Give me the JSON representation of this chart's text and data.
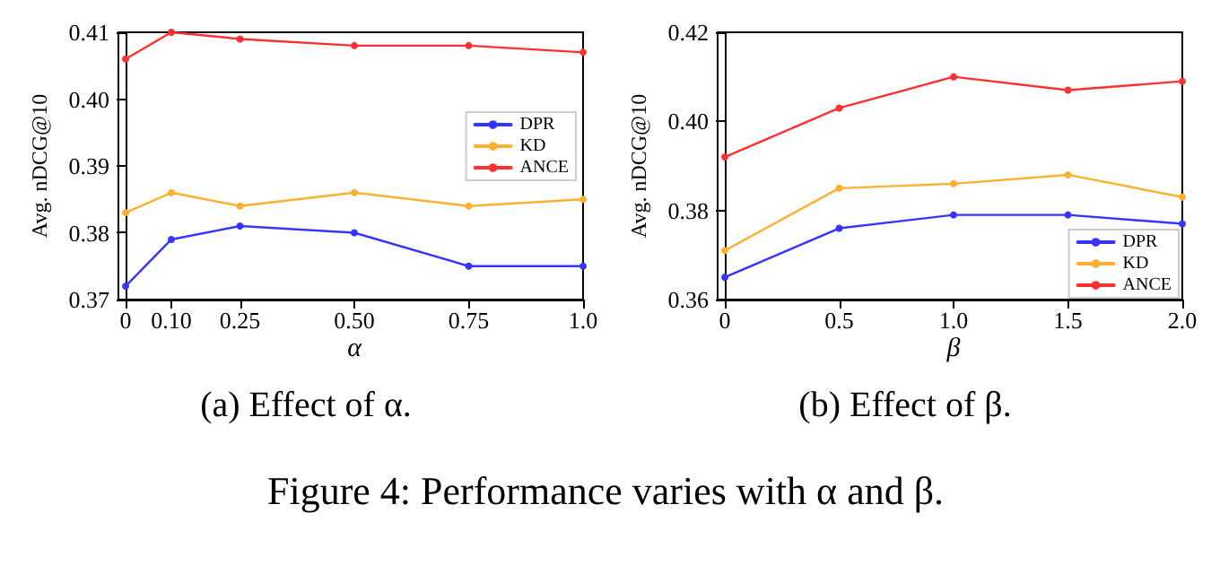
{
  "chart_data": [
    {
      "type": "line",
      "title": "(a) Effect of α.",
      "xlabel": "α",
      "ylabel": "Avg. nDCG@10",
      "x": [
        0,
        0.1,
        0.25,
        0.5,
        0.75,
        1.0
      ],
      "series": [
        {
          "name": "DPR",
          "color": "#3535ff",
          "values": [
            0.372,
            0.379,
            0.381,
            0.38,
            0.375,
            0.375
          ]
        },
        {
          "name": "KD",
          "color": "#ffb030",
          "values": [
            0.383,
            0.386,
            0.384,
            0.386,
            0.384,
            0.385
          ]
        },
        {
          "name": "ANCE",
          "color": "#ff3030",
          "values": [
            0.406,
            0.41,
            0.409,
            0.408,
            0.408,
            0.407
          ]
        }
      ],
      "xlim": [
        0,
        1.0
      ],
      "xticks": [
        0,
        {
          "value": 0.1,
          "label": "0.10"
        },
        0.25,
        {
          "value": 0.5,
          "label": "0.50"
        },
        0.75,
        {
          "value": 1.0,
          "label": "1.0"
        }
      ],
      "ylim": [
        0.37,
        0.41
      ],
      "yticks": [
        0.37,
        0.38,
        0.39,
        {
          "value": 0.4,
          "label": "0.40"
        },
        0.41
      ],
      "legend": "right",
      "marker": "circle",
      "line_style": "solid",
      "grid": false,
      "annotations": [
        "Figure 4: Performance varies with α and β."
      ]
    },
    {
      "type": "line",
      "title": "(b) Effect of β.",
      "xlabel": "β",
      "ylabel": "Avg. nDCG@10",
      "x": [
        0,
        0.5,
        1.0,
        1.5,
        2.0
      ],
      "series": [
        {
          "name": "DPR",
          "color": "#3535ff",
          "values": [
            0.365,
            0.376,
            0.379,
            0.379,
            0.377
          ]
        },
        {
          "name": "KD",
          "color": "#ffb030",
          "values": [
            0.371,
            0.385,
            0.386,
            0.388,
            0.383
          ]
        },
        {
          "name": "ANCE",
          "color": "#ff3030",
          "values": [
            0.392,
            0.403,
            0.41,
            0.407,
            0.409
          ]
        }
      ],
      "xlim": [
        0,
        2.0
      ],
      "xticks": [
        0,
        0.5,
        {
          "value": 1.0,
          "label": "1.0"
        },
        1.5,
        {
          "value": 2.0,
          "label": "2.0"
        }
      ],
      "ylim": [
        0.36,
        0.42
      ],
      "yticks": [
        0.36,
        0.38,
        {
          "value": 0.4,
          "label": "0.40"
        },
        0.42
      ],
      "legend": "bottom right",
      "marker": "circle",
      "line_style": "solid",
      "grid": false
    }
  ]
}
